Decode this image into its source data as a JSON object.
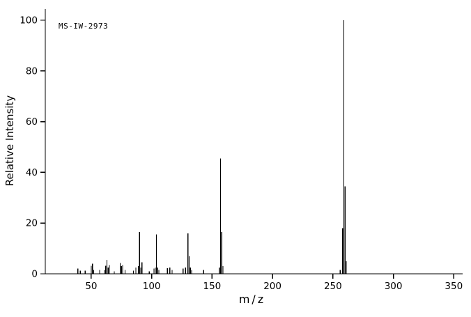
{
  "chart_data": {
    "type": "bar",
    "subtype": "mass-spectrum",
    "title": "MS-IW-2973",
    "xlabel": "m/z",
    "ylabel": "Relative Intensity",
    "xlim": [
      12,
      355
    ],
    "ylim": [
      0,
      100
    ],
    "grid": false,
    "x_ticks": [
      50,
      100,
      150,
      200,
      250,
      300,
      350
    ],
    "y_ticks": [
      0,
      20,
      40,
      60,
      80,
      100
    ],
    "peaks": [
      [
        39,
        2.0
      ],
      [
        41,
        1.2
      ],
      [
        45,
        1.2
      ],
      [
        50,
        3.2
      ],
      [
        51,
        4.0
      ],
      [
        52,
        1.5
      ],
      [
        57,
        1.5
      ],
      [
        61,
        1.5
      ],
      [
        62,
        3.2
      ],
      [
        63,
        5.5
      ],
      [
        64,
        2.5
      ],
      [
        65,
        3.5
      ],
      [
        69,
        1.0
      ],
      [
        74,
        4.2
      ],
      [
        75,
        3.0
      ],
      [
        76,
        3.5
      ],
      [
        78,
        1.5
      ],
      [
        85,
        1.2
      ],
      [
        87,
        2.5
      ],
      [
        89,
        3.0
      ],
      [
        90,
        16.5
      ],
      [
        91,
        2.5
      ],
      [
        92,
        4.5
      ],
      [
        98,
        1.0
      ],
      [
        102,
        2.0
      ],
      [
        103,
        2.5
      ],
      [
        104,
        15.5
      ],
      [
        105,
        2.5
      ],
      [
        106,
        1.5
      ],
      [
        113,
        2.2
      ],
      [
        115,
        2.5
      ],
      [
        117,
        1.5
      ],
      [
        126,
        2.0
      ],
      [
        128,
        2.5
      ],
      [
        130,
        16.0
      ],
      [
        131,
        7.0
      ],
      [
        132,
        2.5
      ],
      [
        133,
        1.5
      ],
      [
        143,
        1.5
      ],
      [
        156,
        2.5
      ],
      [
        157,
        45.5
      ],
      [
        158,
        16.5
      ],
      [
        159,
        3.0
      ],
      [
        256,
        1.5
      ],
      [
        258,
        18.0
      ],
      [
        259,
        100.0
      ],
      [
        260,
        34.5
      ],
      [
        261,
        5.0
      ]
    ],
    "axis_color": "#000000",
    "peak_color": "#000000"
  }
}
